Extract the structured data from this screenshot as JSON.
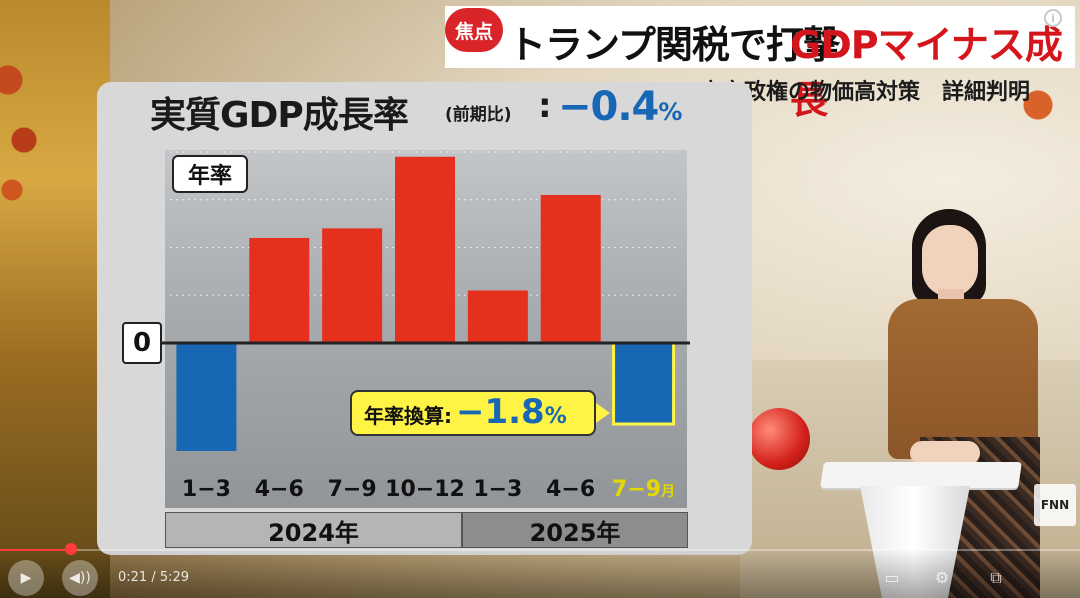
{
  "headline": {
    "badge": "焦点",
    "main_black": "トランプ関税で打撃",
    "main_red": "GDPマイナス成長",
    "info_mark": "i",
    "subtitle": "高市政権の物価高対策　詳細判明"
  },
  "colors": {
    "badge": "#d9242a",
    "headline_red": "#d4151c",
    "bar_positive": "#e5301e",
    "bar_negative": "#1767b5",
    "highlight": "#fff445"
  },
  "chart_data": {
    "type": "bar",
    "title": "実質GDP成長率",
    "title_note": "(前期比)",
    "title_colon": ":",
    "headline_value": "−0.4",
    "headline_unit": "%",
    "unit_label": "年率",
    "zero_label": "0",
    "categories": [
      "1−3",
      "4−6",
      "7−9",
      "10−12",
      "1−3",
      "4−6",
      "7−9"
    ],
    "last_category_unit": "月",
    "years": [
      {
        "label": "2024年",
        "quarters": 4
      },
      {
        "label": "2025年",
        "quarters": 3
      }
    ],
    "values": [
      -2.4,
      2.2,
      2.4,
      3.9,
      1.1,
      3.1,
      -1.8
    ],
    "ylim": [
      -2.6,
      4.0
    ],
    "highlight_index": 6,
    "callout": {
      "label": "年率換算:",
      "value": "−1.8",
      "unit": "%"
    }
  },
  "branding": {
    "logo": "FNN"
  },
  "player": {
    "time": "0:21 / 5:29",
    "progress": 0.066,
    "play_icon": "play-icon",
    "volume_icon": "volume-icon"
  }
}
